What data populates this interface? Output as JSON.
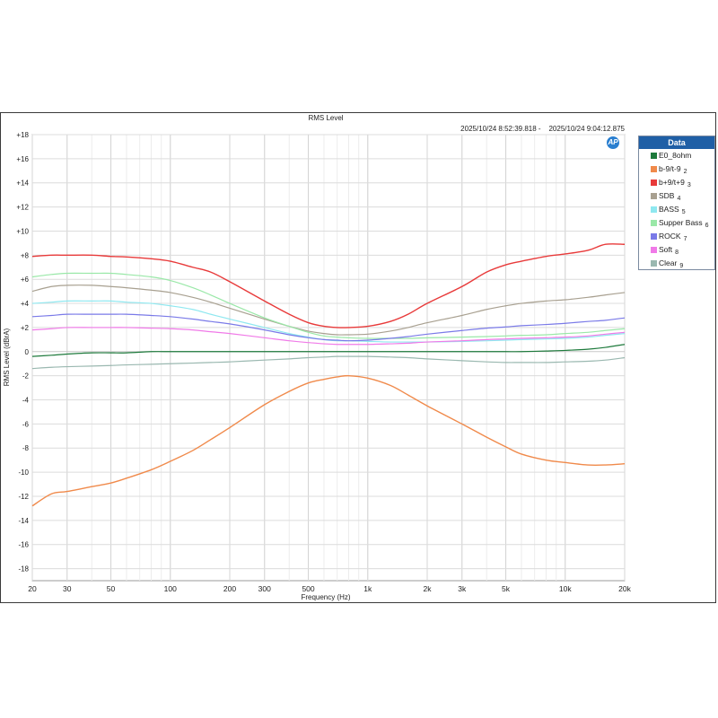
{
  "chart_data": {
    "type": "line",
    "title": "RMS Level",
    "timestamp": "2025/10/24 8:52:39.818 -    2025/10/24 9:04:12.875",
    "xlabel": "Frequency (Hz)",
    "ylabel": "RMS Level (dBrA)",
    "x_scale": "log",
    "xlim": [
      20,
      20000
    ],
    "ylim": [
      -19,
      18
    ],
    "grid": true,
    "x_ticks": [
      20,
      30,
      50,
      100,
      200,
      300,
      500,
      1000,
      2000,
      3000,
      5000,
      10000,
      20000
    ],
    "x_tick_labels": [
      "20",
      "30",
      "50",
      "100",
      "200",
      "300",
      "500",
      "1k",
      "2k",
      "3k",
      "5k",
      "10k",
      "20k"
    ],
    "y_ticks": [
      18,
      16,
      14,
      12,
      10,
      8,
      6,
      4,
      2,
      0,
      -2,
      -4,
      -6,
      -8,
      -10,
      -12,
      -14,
      -16,
      -18
    ],
    "y_tick_labels": [
      "+18",
      "+16",
      "+14",
      "+12",
      "+10",
      "+8",
      "+6",
      "+4",
      "+2",
      "0",
      "-2",
      "-4",
      "-6",
      "-8",
      "-10",
      "-12",
      "-14",
      "-16",
      "-18"
    ],
    "legend_title": "Data",
    "legend_position": "right",
    "x": [
      20,
      25,
      30,
      40,
      50,
      60,
      80,
      100,
      130,
      160,
      200,
      300,
      400,
      500,
      600,
      700,
      800,
      1000,
      1300,
      1600,
      2000,
      3000,
      4000,
      5000,
      6000,
      8000,
      10000,
      13000,
      16000,
      20000
    ],
    "series": [
      {
        "name": "E0_8ohm",
        "num": "",
        "color": "#1e7a3c",
        "values": [
          -0.4,
          -0.3,
          -0.2,
          -0.1,
          -0.1,
          -0.1,
          0,
          0,
          0,
          0,
          0,
          0,
          0,
          0,
          0,
          0,
          0,
          0,
          0,
          0,
          0,
          0,
          0,
          0,
          0,
          0.05,
          0.1,
          0.2,
          0.35,
          0.6
        ]
      },
      {
        "name": "b-9/t-9",
        "num": "2",
        "color": "#f08a4b",
        "values": [
          -12.8,
          -11.8,
          -11.6,
          -11.2,
          -10.9,
          -10.5,
          -9.8,
          -9.1,
          -8.2,
          -7.3,
          -6.3,
          -4.4,
          -3.3,
          -2.6,
          -2.3,
          -2.1,
          -2.0,
          -2.2,
          -2.8,
          -3.6,
          -4.5,
          -6.0,
          -7.1,
          -7.9,
          -8.5,
          -9.0,
          -9.2,
          -9.4,
          -9.4,
          -9.3
        ]
      },
      {
        "name": "b+9/t+9",
        "num": "3",
        "color": "#e83a3a",
        "values": [
          7.9,
          8.0,
          8.0,
          8.0,
          7.9,
          7.85,
          7.7,
          7.5,
          7.0,
          6.6,
          5.8,
          4.2,
          3.1,
          2.4,
          2.1,
          2.0,
          2.0,
          2.1,
          2.5,
          3.1,
          4.0,
          5.4,
          6.6,
          7.2,
          7.5,
          7.9,
          8.1,
          8.4,
          8.9,
          8.9
        ]
      },
      {
        "name": "SDB",
        "num": "4",
        "color": "#a8a090",
        "values": [
          5.0,
          5.4,
          5.5,
          5.5,
          5.4,
          5.3,
          5.1,
          4.9,
          4.5,
          4.1,
          3.6,
          2.7,
          2.1,
          1.7,
          1.5,
          1.4,
          1.4,
          1.45,
          1.7,
          2.0,
          2.4,
          3.0,
          3.5,
          3.8,
          4.0,
          4.2,
          4.3,
          4.5,
          4.7,
          4.9
        ]
      },
      {
        "name": "BASS",
        "num": "5",
        "color": "#8fe8f0",
        "values": [
          4.0,
          4.1,
          4.2,
          4.2,
          4.2,
          4.1,
          4.0,
          3.8,
          3.5,
          3.1,
          2.7,
          2.0,
          1.5,
          1.2,
          1.0,
          0.9,
          0.9,
          0.85,
          0.8,
          0.8,
          0.8,
          0.85,
          0.9,
          0.95,
          1.0,
          1.05,
          1.1,
          1.2,
          1.35,
          1.5
        ]
      },
      {
        "name": "Supper Bass",
        "num": "6",
        "color": "#9ae8a8",
        "values": [
          6.2,
          6.4,
          6.5,
          6.5,
          6.5,
          6.4,
          6.2,
          5.9,
          5.3,
          4.7,
          4.0,
          2.8,
          2.1,
          1.6,
          1.3,
          1.2,
          1.15,
          1.1,
          1.1,
          1.1,
          1.15,
          1.2,
          1.25,
          1.3,
          1.35,
          1.4,
          1.5,
          1.6,
          1.75,
          1.9
        ]
      },
      {
        "name": "ROCK",
        "num": "7",
        "color": "#7a7ae8",
        "values": [
          2.9,
          3.0,
          3.1,
          3.1,
          3.1,
          3.1,
          3.0,
          2.9,
          2.7,
          2.5,
          2.3,
          1.8,
          1.4,
          1.15,
          1.0,
          0.95,
          0.9,
          0.95,
          1.1,
          1.25,
          1.45,
          1.75,
          1.95,
          2.05,
          2.15,
          2.25,
          2.35,
          2.5,
          2.6,
          2.8
        ]
      },
      {
        "name": "Soft",
        "num": "8",
        "color": "#f07ae8",
        "values": [
          1.8,
          1.9,
          2.0,
          2.0,
          2.0,
          2.0,
          1.95,
          1.9,
          1.8,
          1.65,
          1.5,
          1.15,
          0.9,
          0.75,
          0.65,
          0.6,
          0.6,
          0.6,
          0.65,
          0.7,
          0.8,
          0.9,
          1.0,
          1.05,
          1.1,
          1.15,
          1.2,
          1.3,
          1.45,
          1.6
        ]
      },
      {
        "name": "Clear",
        "num": "9",
        "color": "#9ab8b0",
        "values": [
          -1.4,
          -1.3,
          -1.25,
          -1.2,
          -1.15,
          -1.1,
          -1.05,
          -1.0,
          -0.95,
          -0.9,
          -0.85,
          -0.7,
          -0.6,
          -0.5,
          -0.45,
          -0.4,
          -0.4,
          -0.4,
          -0.45,
          -0.5,
          -0.6,
          -0.75,
          -0.85,
          -0.9,
          -0.9,
          -0.9,
          -0.85,
          -0.8,
          -0.7,
          -0.5
        ]
      }
    ]
  }
}
